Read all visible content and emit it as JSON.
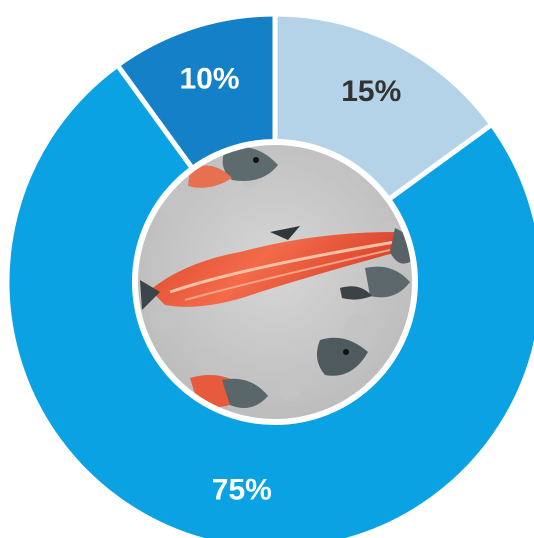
{
  "chart_data": {
    "type": "pie",
    "donut": true,
    "title": "",
    "slices": [
      {
        "label": "15%",
        "value": 15,
        "color": "#b5d3e8",
        "label_color": "#333333"
      },
      {
        "label": "75%",
        "value": 75,
        "color": "#0aa2e2",
        "label_color": "#ffffff"
      },
      {
        "label": "10%",
        "value": 10,
        "color": "#1480c7",
        "label_color": "#ffffff"
      }
    ],
    "start_angle_deg": 0,
    "direction": "clockwise",
    "center_image": "salmon-fillet-with-fish-heads-on-ice"
  }
}
